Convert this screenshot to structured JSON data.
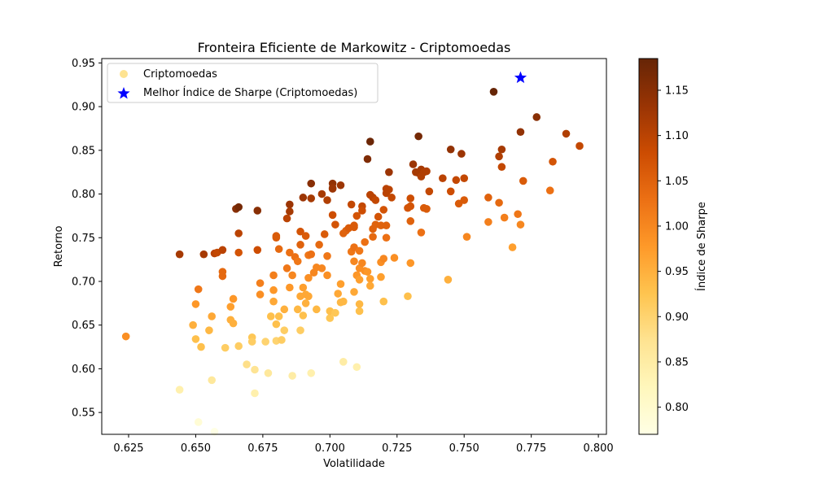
{
  "chart_data": {
    "type": "scatter",
    "title": "Fronteira Eficiente de Markowitz - Criptomoedas",
    "xlabel": "Volatilidade",
    "ylabel": "Retorno",
    "xlim": [
      0.615,
      0.803
    ],
    "ylim": [
      0.525,
      0.955
    ],
    "xticks": [
      "0.625",
      "0.650",
      "0.675",
      "0.700",
      "0.725",
      "0.750",
      "0.775",
      "0.800"
    ],
    "yticks": [
      "0.55",
      "0.60",
      "0.65",
      "0.70",
      "0.75",
      "0.80",
      "0.85",
      "0.90",
      "0.95"
    ],
    "grid": false,
    "legend_position": "top-left",
    "colormap": "YlOrBr",
    "colorbar": {
      "label": "Índice de Sharpe",
      "range": [
        0.77,
        1.185
      ],
      "ticks": [
        "0.80",
        "0.85",
        "0.90",
        "0.95",
        "1.00",
        "1.05",
        "1.10",
        "1.15"
      ]
    },
    "series": [
      {
        "name": "Criptomoedas",
        "points": [
          [
            0.624,
            0.637,
            0.99
          ],
          [
            0.644,
            0.576,
            0.84
          ],
          [
            0.644,
            0.731,
            1.12
          ],
          [
            0.649,
            0.65,
            0.95
          ],
          [
            0.65,
            0.634,
            0.93
          ],
          [
            0.65,
            0.674,
            0.98
          ],
          [
            0.651,
            0.691,
            1.02
          ],
          [
            0.651,
            0.539,
            0.79
          ],
          [
            0.652,
            0.625,
            0.93
          ],
          [
            0.653,
            0.731,
            1.12
          ],
          [
            0.655,
            0.644,
            0.94
          ],
          [
            0.656,
            0.66,
            0.96
          ],
          [
            0.656,
            0.587,
            0.86
          ],
          [
            0.657,
            0.528,
            0.77
          ],
          [
            0.657,
            0.732,
            1.1
          ],
          [
            0.658,
            0.733,
            1.09
          ],
          [
            0.66,
            0.736,
            1.1
          ],
          [
            0.66,
            0.706,
            1.04
          ],
          [
            0.66,
            0.711,
            1.04
          ],
          [
            0.661,
            0.624,
            0.91
          ],
          [
            0.663,
            0.671,
            0.97
          ],
          [
            0.663,
            0.656,
            0.95
          ],
          [
            0.664,
            0.652,
            0.95
          ],
          [
            0.664,
            0.68,
            0.98
          ],
          [
            0.665,
            0.783,
            1.15
          ],
          [
            0.666,
            0.785,
            1.17
          ],
          [
            0.666,
            0.755,
            1.1
          ],
          [
            0.666,
            0.626,
            0.91
          ],
          [
            0.666,
            0.733,
            1.07
          ],
          [
            0.669,
            0.605,
            0.88
          ],
          [
            0.671,
            0.636,
            0.92
          ],
          [
            0.671,
            0.631,
            0.91
          ],
          [
            0.672,
            0.572,
            0.84
          ],
          [
            0.672,
            0.599,
            0.87
          ],
          [
            0.673,
            0.781,
            1.15
          ],
          [
            0.673,
            0.736,
            1.08
          ],
          [
            0.674,
            0.698,
            1.01
          ],
          [
            0.674,
            0.685,
            0.99
          ],
          [
            0.676,
            0.631,
            0.9
          ],
          [
            0.677,
            0.595,
            0.86
          ],
          [
            0.678,
            0.66,
            0.93
          ],
          [
            0.679,
            0.707,
            1.01
          ],
          [
            0.679,
            0.69,
            0.98
          ],
          [
            0.679,
            0.677,
            0.96
          ],
          [
            0.68,
            0.651,
            0.93
          ],
          [
            0.68,
            0.632,
            0.9
          ],
          [
            0.68,
            0.75,
            1.06
          ],
          [
            0.68,
            0.752,
            1.06
          ],
          [
            0.681,
            0.66,
            0.93
          ],
          [
            0.681,
            0.737,
            1.04
          ],
          [
            0.682,
            0.633,
            0.91
          ],
          [
            0.683,
            0.644,
            0.91
          ],
          [
            0.683,
            0.668,
            0.95
          ],
          [
            0.684,
            0.772,
            1.1
          ],
          [
            0.684,
            0.715,
            1.02
          ],
          [
            0.685,
            0.788,
            1.13
          ],
          [
            0.685,
            0.78,
            1.12
          ],
          [
            0.685,
            0.693,
            0.98
          ],
          [
            0.685,
            0.733,
            1.03
          ],
          [
            0.686,
            0.592,
            0.85
          ],
          [
            0.686,
            0.707,
            1.0
          ],
          [
            0.687,
            0.728,
            1.03
          ],
          [
            0.688,
            0.723,
            1.02
          ],
          [
            0.688,
            0.668,
            0.94
          ],
          [
            0.689,
            0.644,
            0.91
          ],
          [
            0.689,
            0.683,
            0.96
          ],
          [
            0.689,
            0.742,
            1.05
          ],
          [
            0.689,
            0.757,
            1.07
          ],
          [
            0.69,
            0.796,
            1.13
          ],
          [
            0.69,
            0.693,
            0.97
          ],
          [
            0.69,
            0.661,
            0.93
          ],
          [
            0.691,
            0.685,
            0.96
          ],
          [
            0.691,
            0.675,
            0.95
          ],
          [
            0.691,
            0.752,
            1.06
          ],
          [
            0.692,
            0.704,
            0.99
          ],
          [
            0.692,
            0.73,
            1.02
          ],
          [
            0.692,
            0.683,
            0.96
          ],
          [
            0.693,
            0.795,
            1.12
          ],
          [
            0.693,
            0.731,
            1.03
          ],
          [
            0.693,
            0.812,
            1.15
          ],
          [
            0.693,
            0.595,
            0.84
          ],
          [
            0.694,
            0.71,
            1.0
          ],
          [
            0.695,
            0.668,
            0.94
          ],
          [
            0.695,
            0.716,
            1.0
          ],
          [
            0.696,
            0.742,
            1.04
          ],
          [
            0.697,
            0.8,
            1.12
          ],
          [
            0.697,
            0.715,
            1.0
          ],
          [
            0.698,
            0.754,
            1.06
          ],
          [
            0.699,
            0.793,
            1.11
          ],
          [
            0.699,
            0.707,
            0.99
          ],
          [
            0.699,
            0.729,
            1.02
          ],
          [
            0.7,
            0.658,
            0.92
          ],
          [
            0.7,
            0.666,
            0.93
          ],
          [
            0.701,
            0.812,
            1.14
          ],
          [
            0.701,
            0.807,
            1.13
          ],
          [
            0.701,
            0.806,
            1.13
          ],
          [
            0.701,
            0.776,
            1.08
          ],
          [
            0.702,
            0.664,
            0.92
          ],
          [
            0.702,
            0.765,
            1.07
          ],
          [
            0.703,
            0.686,
            0.96
          ],
          [
            0.704,
            0.697,
            0.97
          ],
          [
            0.704,
            0.676,
            0.94
          ],
          [
            0.704,
            0.81,
            1.13
          ],
          [
            0.705,
            0.677,
            0.94
          ],
          [
            0.705,
            0.755,
            1.05
          ],
          [
            0.705,
            0.608,
            0.85
          ],
          [
            0.706,
            0.758,
            1.05
          ],
          [
            0.707,
            0.761,
            1.06
          ],
          [
            0.708,
            0.788,
            1.09
          ],
          [
            0.708,
            0.734,
            1.02
          ],
          [
            0.709,
            0.762,
            1.06
          ],
          [
            0.709,
            0.764,
            1.06
          ],
          [
            0.709,
            0.739,
            1.03
          ],
          [
            0.709,
            0.723,
            1.0
          ],
          [
            0.709,
            0.688,
            0.96
          ],
          [
            0.71,
            0.707,
            0.98
          ],
          [
            0.71,
            0.602,
            0.84
          ],
          [
            0.71,
            0.775,
            1.07
          ],
          [
            0.711,
            0.735,
            1.02
          ],
          [
            0.711,
            0.715,
            0.99
          ],
          [
            0.711,
            0.702,
            0.97
          ],
          [
            0.711,
            0.666,
            0.93
          ],
          [
            0.711,
            0.674,
            0.94
          ],
          [
            0.712,
            0.786,
            1.09
          ],
          [
            0.712,
            0.781,
            1.08
          ],
          [
            0.712,
            0.721,
            1.0
          ],
          [
            0.713,
            0.712,
            0.99
          ],
          [
            0.713,
            0.745,
            1.03
          ],
          [
            0.714,
            0.84,
            1.16
          ],
          [
            0.714,
            0.711,
            0.98
          ],
          [
            0.715,
            0.86,
            1.18
          ],
          [
            0.715,
            0.799,
            1.1
          ],
          [
            0.715,
            0.703,
            0.97
          ],
          [
            0.715,
            0.695,
            0.96
          ],
          [
            0.716,
            0.751,
            1.04
          ],
          [
            0.716,
            0.76,
            1.05
          ],
          [
            0.716,
            0.796,
            1.1
          ],
          [
            0.717,
            0.765,
            1.05
          ],
          [
            0.717,
            0.793,
            1.09
          ],
          [
            0.718,
            0.774,
            1.07
          ],
          [
            0.719,
            0.722,
            0.99
          ],
          [
            0.719,
            0.705,
            0.97
          ],
          [
            0.719,
            0.764,
            1.05
          ],
          [
            0.72,
            0.677,
            0.93
          ],
          [
            0.72,
            0.782,
            1.07
          ],
          [
            0.72,
            0.726,
            1.0
          ],
          [
            0.721,
            0.764,
            1.05
          ],
          [
            0.721,
            0.801,
            1.1
          ],
          [
            0.721,
            0.75,
            1.03
          ],
          [
            0.721,
            0.806,
            1.1
          ],
          [
            0.722,
            0.825,
            1.13
          ],
          [
            0.722,
            0.805,
            1.1
          ],
          [
            0.723,
            0.796,
            1.09
          ],
          [
            0.724,
            0.727,
            0.99
          ],
          [
            0.729,
            0.683,
            0.93
          ],
          [
            0.729,
            0.784,
            1.07
          ],
          [
            0.73,
            0.795,
            1.08
          ],
          [
            0.73,
            0.769,
            1.05
          ],
          [
            0.73,
            0.786,
            1.07
          ],
          [
            0.73,
            0.721,
            0.98
          ],
          [
            0.731,
            0.834,
            1.13
          ],
          [
            0.732,
            0.825,
            1.12
          ],
          [
            0.733,
            0.866,
            1.17
          ],
          [
            0.733,
            0.824,
            1.12
          ],
          [
            0.734,
            0.82,
            1.11
          ],
          [
            0.734,
            0.828,
            1.12
          ],
          [
            0.734,
            0.756,
            1.03
          ],
          [
            0.735,
            0.784,
            1.06
          ],
          [
            0.735,
            0.825,
            1.11
          ],
          [
            0.736,
            0.826,
            1.11
          ],
          [
            0.736,
            0.783,
            1.06
          ],
          [
            0.737,
            0.803,
            1.09
          ],
          [
            0.742,
            0.818,
            1.1
          ],
          [
            0.744,
            0.702,
            0.95
          ],
          [
            0.745,
            0.851,
            1.14
          ],
          [
            0.745,
            0.803,
            1.08
          ],
          [
            0.747,
            0.816,
            1.09
          ],
          [
            0.748,
            0.789,
            1.06
          ],
          [
            0.749,
            0.846,
            1.13
          ],
          [
            0.75,
            0.793,
            1.06
          ],
          [
            0.75,
            0.818,
            1.09
          ],
          [
            0.751,
            0.751,
            1.0
          ],
          [
            0.759,
            0.796,
            1.05
          ],
          [
            0.759,
            0.768,
            1.01
          ],
          [
            0.761,
            0.917,
            1.2
          ],
          [
            0.763,
            0.843,
            1.11
          ],
          [
            0.763,
            0.79,
            1.04
          ],
          [
            0.764,
            0.851,
            1.12
          ],
          [
            0.764,
            0.831,
            1.09
          ],
          [
            0.765,
            0.773,
            1.01
          ],
          [
            0.768,
            0.739,
            0.97
          ],
          [
            0.77,
            0.777,
            1.02
          ],
          [
            0.771,
            0.871,
            1.14
          ],
          [
            0.772,
            0.815,
            1.06
          ],
          [
            0.777,
            0.888,
            1.15
          ],
          [
            0.782,
            0.804,
            1.03
          ],
          [
            0.783,
            0.837,
            1.07
          ],
          [
            0.788,
            0.869,
            1.11
          ],
          [
            0.793,
            0.855,
            1.09
          ],
          [
            0.771,
            0.765,
            1.0
          ]
        ]
      },
      {
        "name": "Melhor Índice de Sharpe (Criptomoedas)",
        "marker": "star",
        "color": "#0000ff",
        "points": [
          [
            0.771,
            0.933
          ]
        ]
      }
    ]
  }
}
